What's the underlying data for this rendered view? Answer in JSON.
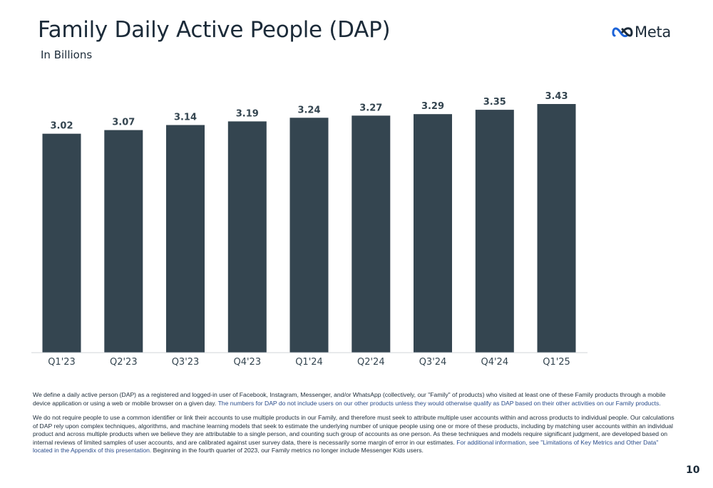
{
  "header": {
    "title": "Family Daily Active People (DAP)",
    "subtitle": "In Billions"
  },
  "logo": {
    "text": "Meta",
    "icon": "meta-infinity-logo"
  },
  "chart_data": {
    "type": "bar",
    "title": "Family Daily Active People (DAP)",
    "subtitle": "In Billions",
    "xlabel": "",
    "ylabel": "",
    "categories": [
      "Q1'23",
      "Q2'23",
      "Q3'23",
      "Q4'23",
      "Q1'24",
      "Q2'24",
      "Q3'24",
      "Q4'24",
      "Q1'25"
    ],
    "values": [
      3.02,
      3.07,
      3.14,
      3.19,
      3.24,
      3.27,
      3.29,
      3.35,
      3.43
    ],
    "value_labels": [
      "3.02",
      "3.07",
      "3.14",
      "3.19",
      "3.24",
      "3.27",
      "3.29",
      "3.35",
      "3.43"
    ],
    "ylim": [
      0,
      3.43
    ],
    "grid": false,
    "legend": "none",
    "bar_color": "#344550"
  },
  "footnotes": {
    "p1_a": "We define a daily active person (DAP) as a registered and logged-in user of Facebook, Instagram, Messenger, and/or WhatsApp (collectively, our \"Family\" of products) who visited at least one of these Family products through a mobile device application or using a web or mobile browser on a given day.",
    "p1_b": "The numbers for DAP do not include users on our other products unless they would otherwise qualify as DAP based on their other activities on our Family products.",
    "p2_a": "We do not require people to use a common identifier or link their accounts to use multiple products in our Family, and therefore must seek to attribute multiple user accounts within and across products to individual people. Our calculations of DAP rely upon complex techniques, algorithms, and machine learning models that seek to estimate the underlying number of unique people using one or more of these products, including by matching user accounts within an individual product and across multiple products when we believe they are attributable to a single person, and counting such group of accounts as one person. As these techniques and models require significant judgment, are developed based on internal reviews of limited samples of user accounts, and are calibrated against user survey data, there is necessarily some margin of error in our estimates.",
    "p2_b": "For additional information, see \"Limitations of Key Metrics and Other Data\" located in the Appendix of this presentation.",
    "p2_c": "Beginning in the fourth quarter of 2023, our Family metrics no longer include Messenger Kids users."
  },
  "page_number": "10"
}
